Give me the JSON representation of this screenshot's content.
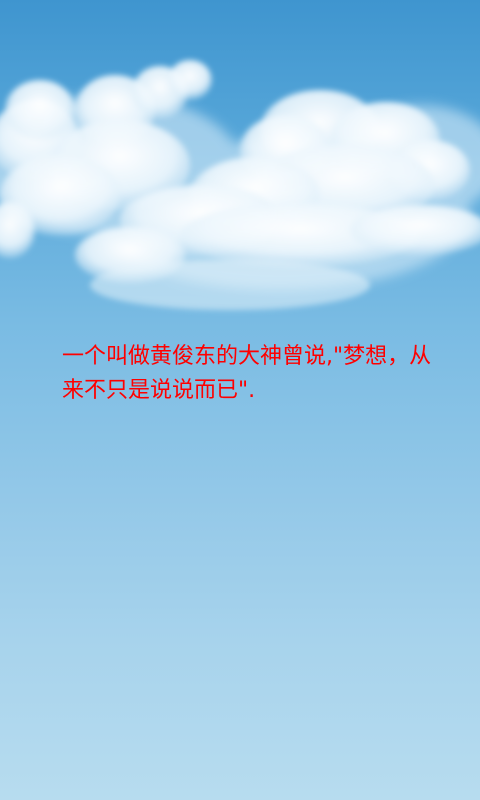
{
  "screen": {
    "background_top": "#3f95cf",
    "background_bottom": "#b7dcef",
    "background_image": "sky-with-clouds"
  },
  "quote": {
    "text": "一个叫做黄俊东的大神曾说,\"梦想，从来不只是说说而已\".",
    "color": "#ff0000"
  }
}
